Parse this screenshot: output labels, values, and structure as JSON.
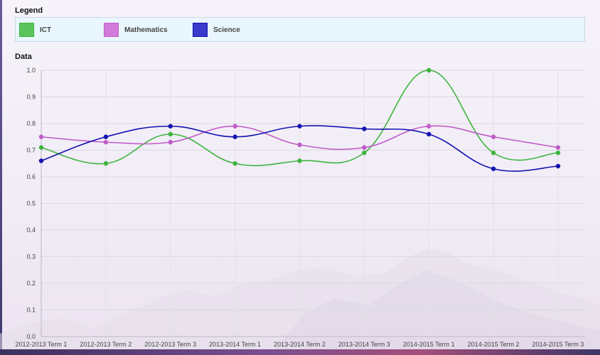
{
  "legend": {
    "heading": "Legend",
    "items": [
      {
        "label": "ICT",
        "color": "#3db53d",
        "fill": "#5cc45c"
      },
      {
        "label": "Mathematics",
        "color": "#c05cc8",
        "fill": "#d27ad9"
      },
      {
        "label": "Science",
        "color": "#1313b0",
        "fill": "#3a3acc"
      }
    ]
  },
  "data_heading": "Data",
  "chart_data": {
    "type": "line",
    "categories": [
      "2012-2013 Term 1",
      "2012-2013 Term 2",
      "2012-2013 Term 3",
      "2013-2014 Term 1",
      "2013-2014 Term 2",
      "2013-2014 Term 3",
      "2014-2015 Term 1",
      "2014-2015 Term 2",
      "2014-2015 Term 3"
    ],
    "series": [
      {
        "name": "ICT",
        "color": "#3db53d",
        "values": [
          0.71,
          0.65,
          0.76,
          0.65,
          0.66,
          0.69,
          1.0,
          0.69,
          0.69
        ]
      },
      {
        "name": "Mathematics",
        "color": "#c05cc8",
        "values": [
          0.75,
          0.73,
          0.73,
          0.79,
          0.72,
          0.71,
          0.79,
          0.75,
          0.71
        ]
      },
      {
        "name": "Science",
        "color": "#1313b0",
        "values": [
          0.66,
          0.75,
          0.79,
          0.75,
          0.79,
          0.78,
          0.76,
          0.63,
          0.64
        ]
      }
    ],
    "y_ticks": [
      "0.0",
      "0.1",
      "0.2",
      "0.3",
      "0.4",
      "0.5",
      "0.6",
      "0.7",
      "0.8",
      "0.9",
      "1.0"
    ],
    "ylim": [
      0,
      1
    ],
    "grid": true,
    "curve": "smooth",
    "legend_position": "top"
  }
}
